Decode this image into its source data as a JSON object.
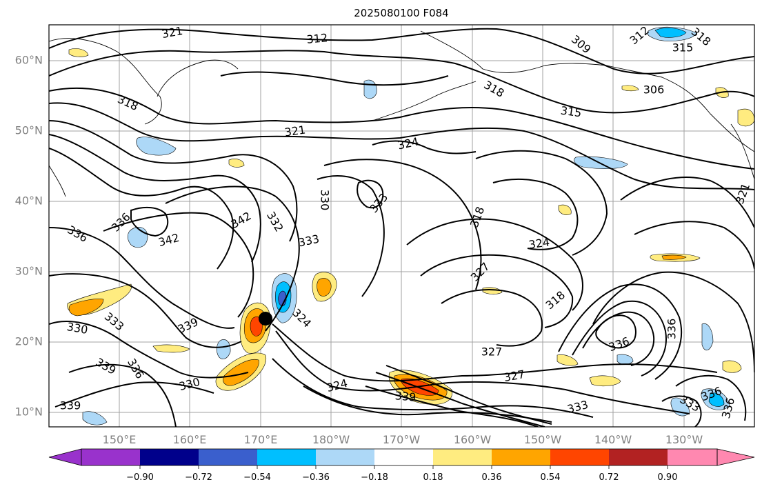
{
  "title": "2025080100 F084",
  "map": {
    "lat_ticks": [
      "60°N",
      "50°N",
      "40°N",
      "30°N",
      "20°N",
      "10°N"
    ],
    "lon_ticks": [
      "150°E",
      "160°E",
      "170°E",
      "180°W",
      "170°W",
      "160°W",
      "150°W",
      "140°W",
      "130°W"
    ],
    "lat_range": [
      8,
      65
    ],
    "lon_range": [
      140,
      240
    ],
    "grid": true,
    "marker": {
      "name": "storm-center",
      "lon": 170.7,
      "lat": 23.3,
      "color": "#000000"
    }
  },
  "contour_labels": [
    "321",
    "312",
    "309",
    "312",
    "318",
    "315",
    "318",
    "318",
    "315",
    "306",
    "321",
    "324",
    "336",
    "336",
    "342",
    "342",
    "332",
    "330",
    "333",
    "333",
    "318",
    "324",
    "327",
    "330",
    "333",
    "339",
    "324",
    "318",
    "336",
    "336",
    "339",
    "336",
    "330",
    "339",
    "324",
    "327",
    "327",
    "339",
    "333",
    "336",
    "333",
    "336",
    "321"
  ],
  "colorbar": {
    "tick_labels": [
      "−0.90",
      "−0.72",
      "−0.54",
      "−0.36",
      "−0.18",
      "0.18",
      "0.36",
      "0.54",
      "0.72",
      "0.90"
    ],
    "colors": [
      "#9932cc",
      "#00008b",
      "#3a5fcd",
      "#00bfff",
      "#add8f7",
      "#ffffff",
      "#ffec80",
      "#ffa500",
      "#ff4500",
      "#b22222",
      "#ff88b0"
    ],
    "extend": "both"
  }
}
